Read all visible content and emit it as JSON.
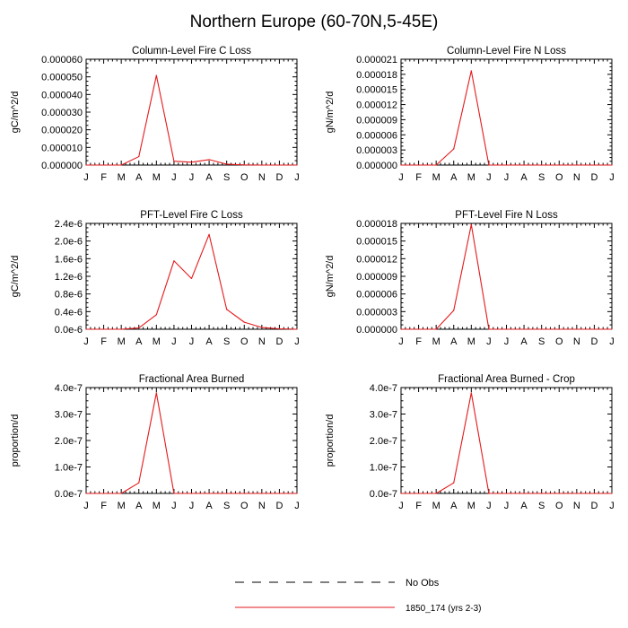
{
  "title": "Northern Europe (60-70N,5-45E)",
  "colors": {
    "series": "#e31a1c",
    "axis": "#000000",
    "obs": "#000000"
  },
  "legend": {
    "entries": [
      {
        "label": "No Obs",
        "style": "dashed",
        "color": "#000000"
      },
      {
        "label": "1850_174 (yrs 2-3)",
        "style": "solid",
        "color": "#e31a1c"
      }
    ]
  },
  "chart_data": [
    {
      "type": "line",
      "title": "Column-Level Fire C Loss",
      "xlabel": "",
      "ylabel": "gC/m^2/d",
      "categories": [
        "J",
        "F",
        "M",
        "A",
        "M",
        "J",
        "J",
        "A",
        "S",
        "O",
        "N",
        "D",
        "J"
      ],
      "ylim": [
        0,
        6e-05
      ],
      "yticks": [
        0,
        1e-05,
        2e-05,
        3e-05,
        4e-05,
        5e-05,
        6e-05
      ],
      "yticklabels": [
        "0.000000",
        "0.000010",
        "0.000020",
        "0.000030",
        "0.000040",
        "0.000050",
        "0.000060"
      ],
      "series": [
        {
          "name": "1850_174 (yrs 2-3)",
          "values": [
            0,
            0,
            0,
            4.8e-06,
            5.08e-05,
            2.2e-06,
            1.6e-06,
            3.1e-06,
            5e-07,
            1e-07,
            0,
            0,
            0
          ]
        }
      ]
    },
    {
      "type": "line",
      "title": "Column-Level Fire N Loss",
      "xlabel": "",
      "ylabel": "gN/m^2/d",
      "categories": [
        "J",
        "F",
        "M",
        "A",
        "M",
        "J",
        "J",
        "A",
        "S",
        "O",
        "N",
        "D",
        "J"
      ],
      "ylim": [
        0,
        2.1e-05
      ],
      "yticks": [
        0,
        3e-06,
        6e-06,
        9e-06,
        1.2e-05,
        1.5e-05,
        1.8e-05,
        2.1e-05
      ],
      "yticklabels": [
        "0.000000",
        "0.000003",
        "0.000006",
        "0.000009",
        "0.000012",
        "0.000015",
        "0.000018",
        "0.000021"
      ],
      "series": [
        {
          "name": "1850_174 (yrs 2-3)",
          "values": [
            0,
            0,
            0,
            3.2e-06,
            1.87e-05,
            0,
            0,
            0,
            0,
            0,
            0,
            0,
            0
          ]
        }
      ]
    },
    {
      "type": "line",
      "title": "PFT-Level Fire C Loss",
      "xlabel": "",
      "ylabel": "gC/m^2/d",
      "categories": [
        "J",
        "F",
        "M",
        "A",
        "M",
        "J",
        "J",
        "A",
        "S",
        "O",
        "N",
        "D",
        "J"
      ],
      "ylim": [
        0,
        2.4e-06
      ],
      "yticks": [
        0,
        4e-07,
        8e-07,
        1.2e-06,
        1.6e-06,
        2e-06,
        2.4e-06
      ],
      "yticklabels": [
        "0.0e-6",
        "0.4e-6",
        "0.8e-6",
        "1.2e-6",
        "1.6e-6",
        "2.0e-6",
        "2.4e-6"
      ],
      "series": [
        {
          "name": "1850_174 (yrs 2-3)",
          "values": [
            0,
            0,
            0,
            3e-08,
            3.3e-07,
            1.55e-06,
            1.15e-06,
            2.15e-06,
            4.5e-07,
            1.6e-07,
            4e-08,
            1e-08,
            0
          ]
        }
      ]
    },
    {
      "type": "line",
      "title": "PFT-Level Fire N Loss",
      "xlabel": "",
      "ylabel": "gN/m^2/d",
      "categories": [
        "J",
        "F",
        "M",
        "A",
        "M",
        "J",
        "J",
        "A",
        "S",
        "O",
        "N",
        "D",
        "J"
      ],
      "ylim": [
        0,
        1.8e-05
      ],
      "yticks": [
        0,
        3e-06,
        6e-06,
        9e-06,
        1.2e-05,
        1.5e-05,
        1.8e-05
      ],
      "yticklabels": [
        "0.000000",
        "0.000003",
        "0.000006",
        "0.000009",
        "0.000012",
        "0.000015",
        "0.000018"
      ],
      "series": [
        {
          "name": "1850_174 (yrs 2-3)",
          "values": [
            0,
            0,
            0,
            3.2e-06,
            1.78e-05,
            0,
            0,
            0,
            0,
            0,
            0,
            0,
            0
          ]
        }
      ]
    },
    {
      "type": "line",
      "title": "Fractional Area Burned",
      "xlabel": "",
      "ylabel": "proportion/d",
      "categories": [
        "J",
        "F",
        "M",
        "A",
        "M",
        "J",
        "J",
        "A",
        "S",
        "O",
        "N",
        "D",
        "J"
      ],
      "ylim": [
        0,
        4e-07
      ],
      "yticks": [
        0,
        1e-07,
        2e-07,
        3e-07,
        4e-07
      ],
      "yticklabels": [
        "0.0e-7",
        "1.0e-7",
        "2.0e-7",
        "3.0e-7",
        "4.0e-7"
      ],
      "series": [
        {
          "name": "1850_174 (yrs 2-3)",
          "values": [
            0,
            0,
            0,
            4e-08,
            3.8e-07,
            0,
            0,
            0,
            0,
            0,
            0,
            0,
            0
          ]
        }
      ]
    },
    {
      "type": "line",
      "title": "Fractional Area Burned - Crop",
      "xlabel": "",
      "ylabel": "proportion/d",
      "categories": [
        "J",
        "F",
        "M",
        "A",
        "M",
        "J",
        "J",
        "A",
        "S",
        "O",
        "N",
        "D",
        "J"
      ],
      "ylim": [
        0,
        4e-07
      ],
      "yticks": [
        0,
        1e-07,
        2e-07,
        3e-07,
        4e-07
      ],
      "yticklabels": [
        "0.0e-7",
        "1.0e-7",
        "2.0e-7",
        "3.0e-7",
        "4.0e-7"
      ],
      "series": [
        {
          "name": "1850_174 (yrs 2-3)",
          "values": [
            0,
            0,
            0,
            4e-08,
            3.8e-07,
            0,
            0,
            0,
            0,
            0,
            0,
            0,
            0
          ]
        }
      ]
    }
  ]
}
